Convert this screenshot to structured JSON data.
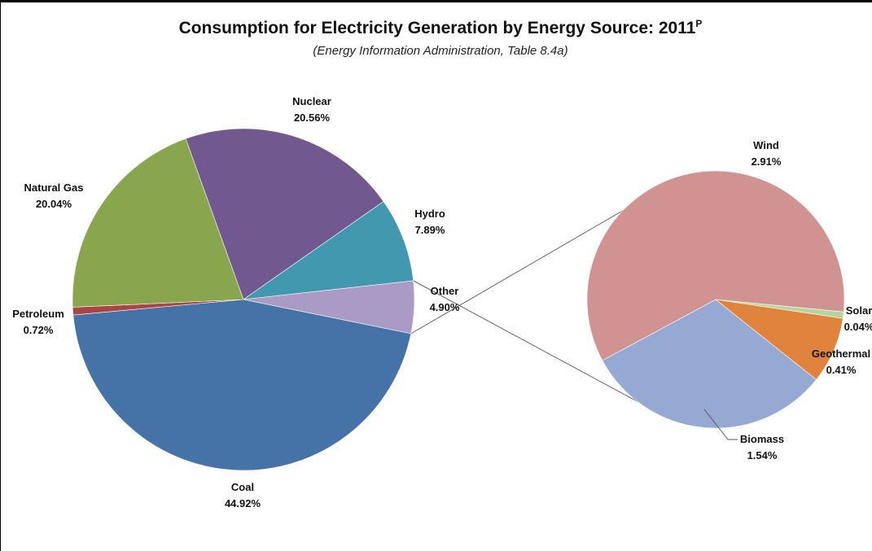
{
  "chart_data": {
    "type": "pie",
    "title": "Consumption for Electricity Generation by Energy Source: 2011",
    "title_superscript": "P",
    "subtitle": "(Energy Information Administration, Table 8.4a)",
    "main_pie": [
      {
        "name": "Coal",
        "value": 44.92,
        "label": "44.92%",
        "color": "#4572A7"
      },
      {
        "name": "Petroleum",
        "value": 0.72,
        "label": "0.72%",
        "color": "#AA4643"
      },
      {
        "name": "Natural Gas",
        "value": 20.04,
        "label": "20.04%",
        "color": "#89A54E"
      },
      {
        "name": "Nuclear",
        "value": 20.56,
        "label": "20.56%",
        "color": "#71588F"
      },
      {
        "name": "Hydro",
        "value": 7.89,
        "label": "7.89%",
        "color": "#4198AF"
      },
      {
        "name": "Other",
        "value": 4.9,
        "label": "4.90%",
        "color": "#A99BC5"
      }
    ],
    "breakout_of": "Other",
    "breakout_pie": [
      {
        "name": "Wind",
        "value": 2.91,
        "label": "2.91%",
        "color": "#D09392"
      },
      {
        "name": "Solar",
        "value": 0.04,
        "label": "0.04%",
        "color": "#B8D49A"
      },
      {
        "name": "Geothermal",
        "value": 0.41,
        "label": "0.41%",
        "color": "#E0843D"
      },
      {
        "name": "Biomass",
        "value": 1.54,
        "label": "1.54%",
        "color": "#95A9D3"
      }
    ]
  }
}
